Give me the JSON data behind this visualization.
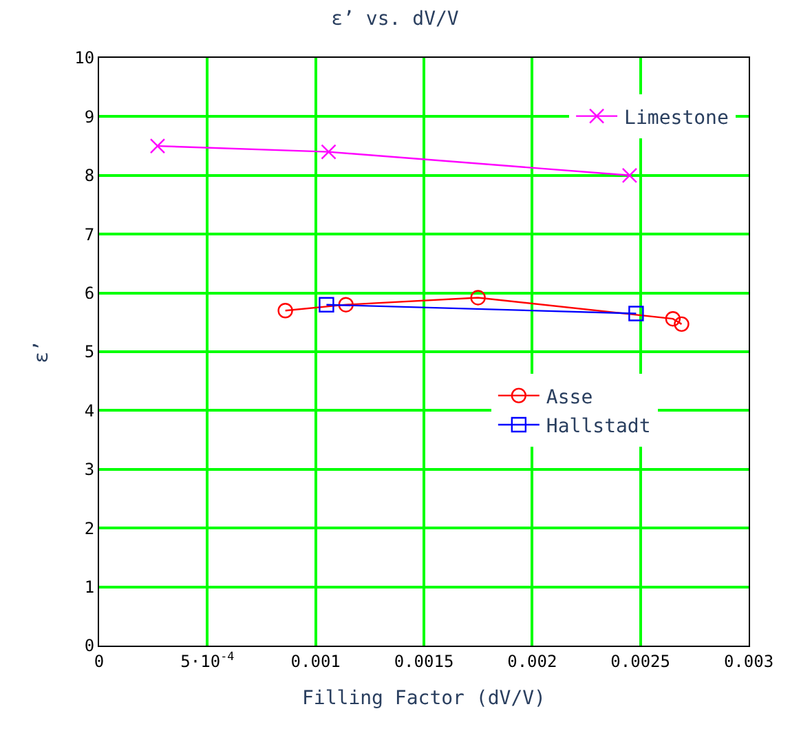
{
  "chart_data": {
    "type": "line",
    "title": "ε’ vs. dV/V",
    "xlabel": "Filling Factor (dV/V)",
    "ylabel": "ε’",
    "xlim": [
      0,
      0.003
    ],
    "xticks": [
      0,
      {
        "value": 0.0005,
        "label": "5·10$^{-4}$"
      },
      0.001,
      0.0015,
      0.002,
      0.0025,
      0.003
    ],
    "ylim": [
      0,
      10
    ],
    "yticks": [
      0,
      1,
      2,
      3,
      4,
      5,
      6,
      7,
      8,
      9,
      10
    ],
    "grid": true,
    "legend": "right",
    "series": [
      {
        "name": "Limestone",
        "color": "#ff00ff",
        "marker": "cross",
        "x": [
          0.00027,
          0.00106,
          0.00245
        ],
        "values": [
          8.5,
          8.4,
          8.0
        ]
      },
      {
        "name": "Asse",
        "color": "#ff0000",
        "marker": "circle",
        "x": [
          0.00086,
          0.00114,
          0.00175,
          0.00265,
          0.00269
        ],
        "values": [
          5.7,
          5.8,
          5.92,
          5.56,
          5.47
        ]
      },
      {
        "name": "Hallstadt",
        "color": "#0000ff",
        "marker": "square",
        "x": [
          0.00105,
          0.00248
        ],
        "values": [
          5.8,
          5.65
        ]
      }
    ]
  }
}
